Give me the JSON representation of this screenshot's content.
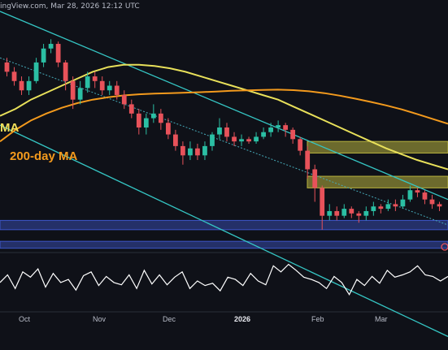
{
  "header": {
    "source_text": "ingView.com, Mar 28, 2026 12:12 UTC"
  },
  "colors": {
    "background": "#0f1118",
    "panel_border": "#2a2e39",
    "candle_up": "#2bbfa4",
    "candle_down": "#e8525a",
    "ma_50": "#e8e05a",
    "ma_200": "#f39a1d",
    "channel": "#35c6c4",
    "midline": "#46a9b8",
    "resistance_zone": "#b9b43f",
    "support_zone": "#3d56c9",
    "rsi": "#ffffff"
  },
  "chart_data": [
    {
      "type": "candlestick",
      "title": "",
      "annotations": [
        "MA",
        "200-day MA"
      ],
      "x_ticks": [
        "Oct",
        "Nov",
        "Dec",
        "2026",
        "Feb",
        "Mar"
      ],
      "bold_ticks": [
        "2026"
      ],
      "price_range": [
        0,
        100
      ],
      "series": [
        {
          "name": "MA",
          "values": [
            55,
            58,
            62,
            65,
            68,
            71,
            74,
            76,
            77,
            77,
            76.5,
            75.5,
            74,
            72,
            70,
            68,
            66,
            64,
            62,
            59,
            56,
            53,
            50,
            47,
            44,
            41,
            38.5,
            36,
            34,
            32
          ]
        },
        {
          "name": "200-day MA",
          "values": [
            44,
            49,
            53,
            56,
            58.5,
            60.5,
            62,
            63,
            63.8,
            64.3,
            64.6,
            64.8,
            65,
            65.2,
            65.5,
            65.8,
            66,
            66.2,
            66.3,
            66.1,
            65.6,
            64.8,
            63.7,
            62.4,
            61,
            59.5,
            57.8,
            55.8,
            53.7,
            51.6
          ]
        }
      ],
      "candles": [
        {
          "o": 78,
          "c": 74,
          "h": 80,
          "l": 72
        },
        {
          "o": 74,
          "c": 70,
          "h": 76,
          "l": 68
        },
        {
          "o": 70,
          "c": 66,
          "h": 72,
          "l": 64
        },
        {
          "o": 66,
          "c": 70,
          "h": 72,
          "l": 64
        },
        {
          "o": 70,
          "c": 78,
          "h": 80,
          "l": 69
        },
        {
          "o": 78,
          "c": 84,
          "h": 86,
          "l": 76
        },
        {
          "o": 84,
          "c": 86,
          "h": 88,
          "l": 82
        },
        {
          "o": 86,
          "c": 78,
          "h": 87,
          "l": 76
        },
        {
          "o": 78,
          "c": 70,
          "h": 79,
          "l": 66
        },
        {
          "o": 70,
          "c": 62,
          "h": 72,
          "l": 58
        },
        {
          "o": 62,
          "c": 67,
          "h": 70,
          "l": 60
        },
        {
          "o": 67,
          "c": 72,
          "h": 74,
          "l": 65
        },
        {
          "o": 72,
          "c": 70,
          "h": 74,
          "l": 67
        },
        {
          "o": 70,
          "c": 66,
          "h": 72,
          "l": 64
        },
        {
          "o": 66,
          "c": 68,
          "h": 70,
          "l": 64
        },
        {
          "o": 68,
          "c": 64,
          "h": 70,
          "l": 62
        },
        {
          "o": 64,
          "c": 60,
          "h": 66,
          "l": 58
        },
        {
          "o": 60,
          "c": 56,
          "h": 62,
          "l": 54
        },
        {
          "o": 56,
          "c": 50,
          "h": 58,
          "l": 47
        },
        {
          "o": 50,
          "c": 54,
          "h": 56,
          "l": 47
        },
        {
          "o": 54,
          "c": 56,
          "h": 60,
          "l": 52
        },
        {
          "o": 56,
          "c": 52,
          "h": 58,
          "l": 49
        },
        {
          "o": 52,
          "c": 47,
          "h": 54,
          "l": 45
        },
        {
          "o": 47,
          "c": 42,
          "h": 49,
          "l": 40
        },
        {
          "o": 42,
          "c": 38,
          "h": 44,
          "l": 34
        },
        {
          "o": 38,
          "c": 41,
          "h": 44,
          "l": 36
        },
        {
          "o": 41,
          "c": 38,
          "h": 43,
          "l": 36
        },
        {
          "o": 38,
          "c": 42,
          "h": 44,
          "l": 36
        },
        {
          "o": 42,
          "c": 47,
          "h": 48,
          "l": 40
        },
        {
          "o": 47,
          "c": 50,
          "h": 54,
          "l": 45
        },
        {
          "o": 50,
          "c": 46,
          "h": 52,
          "l": 44
        },
        {
          "o": 46,
          "c": 44,
          "h": 48,
          "l": 42
        },
        {
          "o": 44,
          "c": 45,
          "h": 47,
          "l": 42
        },
        {
          "o": 45,
          "c": 44,
          "h": 46,
          "l": 43
        },
        {
          "o": 44,
          "c": 46,
          "h": 48,
          "l": 43
        },
        {
          "o": 46,
          "c": 48,
          "h": 50,
          "l": 45
        },
        {
          "o": 48,
          "c": 50,
          "h": 52,
          "l": 46
        },
        {
          "o": 50,
          "c": 51,
          "h": 53,
          "l": 48
        },
        {
          "o": 51,
          "c": 49,
          "h": 52,
          "l": 46
        },
        {
          "o": 49,
          "c": 45,
          "h": 50,
          "l": 43
        },
        {
          "o": 45,
          "c": 40,
          "h": 46,
          "l": 38
        },
        {
          "o": 40,
          "c": 32,
          "h": 42,
          "l": 28
        },
        {
          "o": 32,
          "c": 24,
          "h": 34,
          "l": 18
        },
        {
          "o": 24,
          "c": 12,
          "h": 25,
          "l": 6
        },
        {
          "o": 12,
          "c": 14,
          "h": 17,
          "l": 10
        },
        {
          "o": 14,
          "c": 12,
          "h": 16,
          "l": 10
        },
        {
          "o": 12,
          "c": 15,
          "h": 17,
          "l": 11
        },
        {
          "o": 15,
          "c": 13,
          "h": 16,
          "l": 11
        },
        {
          "o": 13,
          "c": 12,
          "h": 14,
          "l": 9
        },
        {
          "o": 12,
          "c": 14,
          "h": 16,
          "l": 10
        },
        {
          "o": 14,
          "c": 16,
          "h": 18,
          "l": 12
        },
        {
          "o": 16,
          "c": 15,
          "h": 17,
          "l": 13
        },
        {
          "o": 15,
          "c": 17,
          "h": 19,
          "l": 14
        },
        {
          "o": 17,
          "c": 16,
          "h": 19,
          "l": 14
        },
        {
          "o": 16,
          "c": 19,
          "h": 21,
          "l": 15
        },
        {
          "o": 19,
          "c": 23,
          "h": 25,
          "l": 18
        },
        {
          "o": 23,
          "c": 22,
          "h": 24,
          "l": 20
        },
        {
          "o": 22,
          "c": 19,
          "h": 23,
          "l": 17
        },
        {
          "o": 19,
          "c": 17,
          "h": 21,
          "l": 15
        },
        {
          "o": 17,
          "c": 16,
          "h": 18,
          "l": 14
        }
      ],
      "zones": [
        {
          "name": "resistance-upper",
          "kind": "resistance",
          "low": 39,
          "high": 44
        },
        {
          "name": "resistance-lower",
          "kind": "resistance",
          "low": 24,
          "high": 29
        },
        {
          "name": "support-upper",
          "kind": "support",
          "low": 6,
          "high": 10
        },
        {
          "name": "support-lower",
          "kind": "support",
          "low": -2,
          "high": 1
        }
      ],
      "channel": {
        "upper": [
          100,
          19
        ],
        "lower": [
          51,
          -40
        ],
        "mid": [
          80,
          8
        ]
      }
    },
    {
      "type": "line",
      "title": "",
      "y_range": [
        20,
        80
      ],
      "series": [
        {
          "name": "",
          "values": [
            48,
            58,
            40,
            62,
            55,
            66,
            42,
            60,
            48,
            52,
            38,
            57,
            62,
            44,
            56,
            48,
            45,
            58,
            40,
            64,
            46,
            58,
            45,
            55,
            62,
            40,
            50,
            44,
            47,
            37,
            55,
            52,
            44,
            60,
            50,
            45,
            70,
            62,
            72,
            64,
            55,
            52,
            48,
            40,
            56,
            48,
            32,
            52,
            44,
            56,
            47,
            64,
            55,
            58,
            62,
            70,
            58,
            56,
            50,
            56
          ]
        }
      ]
    }
  ]
}
